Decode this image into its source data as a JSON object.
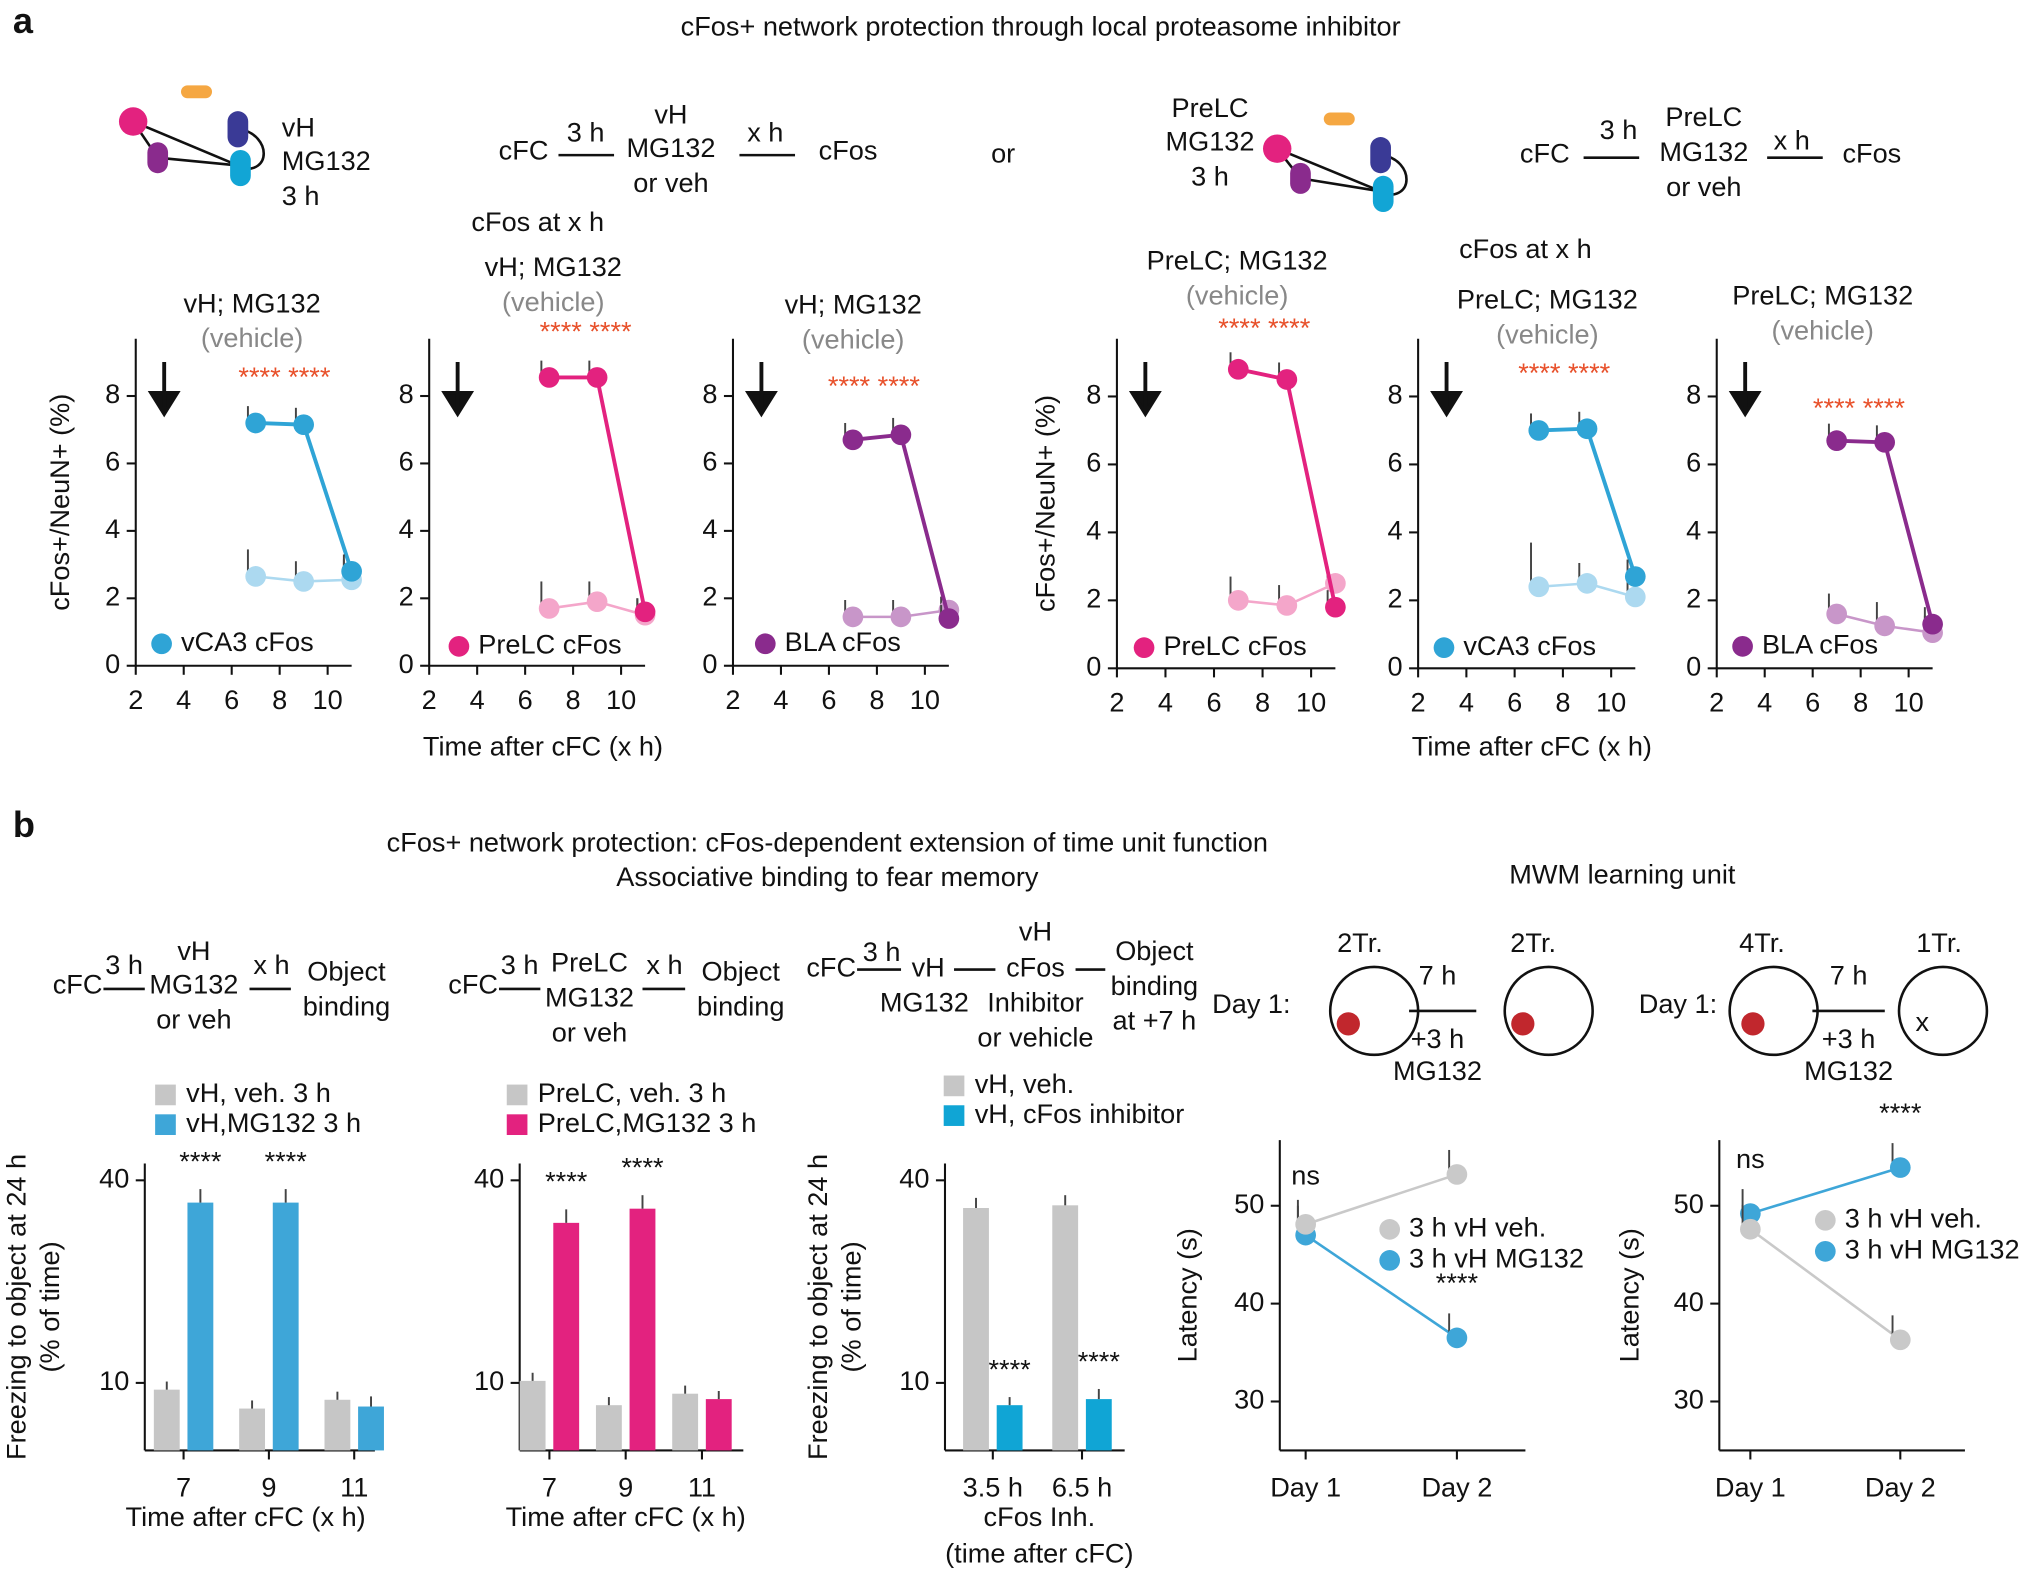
{
  "texts": [
    "a",
    "cFos+ network protection through local proteasome inhibitor",
    "vH",
    "MG132",
    "3 h",
    "cFC",
    "3 h",
    "vH",
    "MG132",
    "or veh",
    "x h",
    "cFos",
    "or",
    "PreLC",
    "MG132",
    "3 h",
    "cFC",
    "3 h",
    "PreLC",
    "MG132",
    "or veh",
    "x h",
    "cFos",
    "cFos at  x h",
    "cFos at  x h",
    "b",
    "cFos+ network protection: cFos-dependent extension of time unit function",
    "Associative binding to fear memory",
    "MWM learning unit",
    "cFC",
    "3 h",
    "vH",
    "MG132",
    "or veh",
    "x h",
    "Object",
    "binding",
    "cFC",
    "3 h",
    "PreLC",
    "MG132",
    "or veh",
    "x h",
    "Object",
    "binding",
    "cFC",
    "3 h",
    "vH",
    "MG132",
    "vH",
    "cFos",
    "Inhibitor",
    "or vehicle",
    "Object",
    "binding",
    "at +7 h",
    "2Tr.",
    "7 h",
    "2Tr.",
    "Day 1:",
    "+3 h",
    "MG132",
    "4Tr.",
    "7 h",
    "1Tr.",
    "Day 1:",
    "+3 h",
    "MG132",
    "x"
  ],
  "chart_data": [
    {
      "type": "line",
      "title": "vH; MG132",
      "subtitle": "(vehicle)",
      "annotation": "**** ****",
      "ylabel": "cFos+/NeuN+ (%)",
      "x": [
        7,
        9,
        11
      ],
      "series": [
        {
          "name": "vCA3 cFos",
          "color": "#2fa4d6",
          "values": [
            7.2,
            7.15,
            2.8
          ],
          "errors": [
            0.5,
            0.5,
            0.5
          ]
        },
        {
          "color": "#acd9f0",
          "values": [
            2.65,
            2.5,
            2.55
          ],
          "errors": [
            0.8,
            0.6,
            0.6
          ]
        }
      ],
      "xlim": [
        2,
        11
      ],
      "xticks": [
        2,
        4,
        6,
        8,
        10
      ],
      "ylim": [
        0,
        9.7
      ],
      "yticks": [
        0,
        2,
        4,
        6,
        8
      ]
    },
    {
      "type": "line",
      "title": "vH; MG132",
      "subtitle": "(vehicle)",
      "annotation": "**** ****",
      "xlabel": "Time after cFC (x h)",
      "x": [
        7,
        9,
        11
      ],
      "series": [
        {
          "name": "PreLC cFos",
          "color": "#e3227f",
          "values": [
            8.55,
            8.55,
            1.6
          ],
          "errors": [
            0.5,
            0.5,
            0.4
          ]
        },
        {
          "color": "#f4a6ca",
          "values": [
            1.7,
            1.9,
            1.5
          ],
          "errors": [
            0.8,
            0.6,
            0.5
          ]
        }
      ],
      "xlim": [
        2,
        11
      ],
      "xticks": [
        2,
        4,
        6,
        8,
        10
      ],
      "ylim": [
        0,
        9.7
      ],
      "yticks": [
        0,
        2,
        4,
        6,
        8
      ]
    },
    {
      "type": "line",
      "title": "vH; MG132",
      "subtitle": "(vehicle)",
      "annotation": "**** ****",
      "x": [
        7,
        9,
        11
      ],
      "series": [
        {
          "name": "BLA cFos",
          "color": "#8a2b8d",
          "values": [
            6.7,
            6.85,
            1.4
          ],
          "errors": [
            0.5,
            0.5,
            0.4
          ]
        },
        {
          "color": "#c896c9",
          "values": [
            1.45,
            1.45,
            1.65
          ],
          "errors": [
            0.5,
            0.5,
            0.4
          ]
        }
      ],
      "xlim": [
        2,
        11
      ],
      "xticks": [
        2,
        4,
        6,
        8,
        10
      ],
      "ylim": [
        0,
        9.7
      ],
      "yticks": [
        0,
        2,
        4,
        6,
        8
      ]
    },
    {
      "type": "line",
      "title": "PreLC; MG132",
      "subtitle": "(vehicle)",
      "annotation": "**** ****",
      "ylabel": "cFos+/NeuN+ (%)",
      "x": [
        7,
        9,
        11
      ],
      "series": [
        {
          "name": "PreLC cFos",
          "color": "#e3227f",
          "values": [
            8.8,
            8.5,
            1.8
          ],
          "errors": [
            0.5,
            0.5,
            0.5
          ]
        },
        {
          "color": "#f4a6ca",
          "values": [
            2.0,
            1.85,
            2.5
          ],
          "errors": [
            0.7,
            0.6,
            0.5
          ]
        }
      ],
      "xlim": [
        2,
        11
      ],
      "xticks": [
        2,
        4,
        6,
        8,
        10
      ],
      "ylim": [
        0,
        9.7
      ],
      "yticks": [
        0,
        2,
        4,
        6,
        8
      ]
    },
    {
      "type": "line",
      "title": "PreLC; MG132",
      "subtitle": "(vehicle)",
      "annotation": "**** ****",
      "xlabel": "Time after cFC (x h)",
      "x": [
        7,
        9,
        11
      ],
      "series": [
        {
          "name": "vCA3 cFos",
          "color": "#2fa4d6",
          "values": [
            7.0,
            7.05,
            2.7
          ],
          "errors": [
            0.5,
            0.5,
            0.5
          ]
        },
        {
          "color": "#acd9f0",
          "values": [
            2.4,
            2.5,
            2.1
          ],
          "errors": [
            1.3,
            0.6,
            0.5
          ]
        }
      ],
      "xlim": [
        2,
        11
      ],
      "xticks": [
        2,
        4,
        6,
        8,
        10
      ],
      "ylim": [
        0,
        9.7
      ],
      "yticks": [
        0,
        2,
        4,
        6,
        8
      ]
    },
    {
      "type": "line",
      "title": "PreLC; MG132",
      "subtitle": "(vehicle)",
      "annotation": "**** ****",
      "x": [
        7,
        9,
        11
      ],
      "series": [
        {
          "name": "BLA cFos",
          "color": "#8a2b8d",
          "values": [
            6.7,
            6.65,
            1.3
          ],
          "errors": [
            0.5,
            0.5,
            0.5
          ]
        },
        {
          "color": "#c896c9",
          "values": [
            1.6,
            1.25,
            1.05
          ],
          "errors": [
            0.6,
            0.7,
            0.5
          ]
        }
      ],
      "xlim": [
        2,
        11
      ],
      "xticks": [
        2,
        4,
        6,
        8,
        10
      ],
      "ylim": [
        0,
        9.7
      ],
      "yticks": [
        0,
        2,
        4,
        6,
        8
      ]
    },
    {
      "type": "bar",
      "categories": [
        "7",
        "9",
        "11"
      ],
      "ylabel": [
        "Freezing to object at 24 h",
        "(% of time)"
      ],
      "xlabel": [
        "Time after cFC (x h)"
      ],
      "series": [
        {
          "name": "vH, veh. 3 h",
          "color": "#c6c6c6",
          "values": [
            9,
            6.2,
            7.5
          ],
          "errors": [
            1.2,
            1.2,
            1.2
          ]
        },
        {
          "name": "vH,MG132 3 h",
          "color": "#3ea6d8",
          "values": [
            36.7,
            36.7,
            6.5
          ],
          "errors": [
            2,
            2,
            1.5
          ]
        }
      ],
      "annotations": [
        "****",
        "****",
        null
      ],
      "ylim": [
        0,
        42.5
      ],
      "yticks": [
        10,
        40
      ]
    },
    {
      "type": "bar",
      "categories": [
        "7",
        "9",
        "11"
      ],
      "xlabel": [
        "Time after cFC (x h)"
      ],
      "series": [
        {
          "name": "PreLC, veh. 3 h",
          "color": "#c6c6c6",
          "values": [
            10.3,
            6.7,
            8.4
          ],
          "errors": [
            1.2,
            1.2,
            1.2
          ]
        },
        {
          "name": "PreLC,MG132 3 h",
          "color": "#e3227f",
          "values": [
            33.7,
            35.8,
            7.6
          ],
          "errors": [
            2,
            2,
            1.2
          ]
        }
      ],
      "annotations": [
        "****",
        "****",
        null
      ],
      "ylim": [
        0,
        42.5
      ],
      "yticks": [
        10,
        40
      ]
    },
    {
      "type": "bar",
      "categories": [
        "3.5 h",
        "6.5 h"
      ],
      "ylabel": [
        "Freezing to object at 24 h",
        "(% of time)"
      ],
      "xlabel": [
        "cFos Inh.",
        "(time after cFC)"
      ],
      "series": [
        {
          "name": "vH, veh.",
          "color": "#c6c6c6",
          "values": [
            35.9,
            36.3
          ],
          "errors": [
            1.5,
            1.5
          ]
        },
        {
          "name": "vH, cFos inhibitor",
          "color": "#10a5d5",
          "values": [
            6.7,
            7.6
          ],
          "errors": [
            1.2,
            1.5
          ]
        }
      ],
      "annotations": [
        "****",
        "****"
      ],
      "ylim": [
        0,
        42.5
      ],
      "yticks": [
        10,
        40
      ]
    },
    {
      "type": "line",
      "categories": [
        "Day 1",
        "Day 2"
      ],
      "ylabel": "Latency (s)",
      "series": [
        {
          "name": "3 h vH veh.",
          "color": "#c9c9c9",
          "values": [
            48.1,
            53.2
          ],
          "errors": [
            2.5,
            2.5
          ]
        },
        {
          "name": "3 h vH MG132",
          "color": "#3ea6d8",
          "values": [
            47.0,
            36.5
          ],
          "errors": [
            3,
            2.5
          ]
        }
      ],
      "annotations": [
        "ns",
        "****"
      ],
      "ylim": [
        25,
        56.7
      ],
      "yticks": [
        30,
        40,
        50
      ]
    },
    {
      "type": "line",
      "categories": [
        "Day 1",
        "Day 2"
      ],
      "ylabel": "Latency (s)",
      "series": [
        {
          "name": "3 h vH veh.",
          "color": "#c9c9c9",
          "values": [
            47.6,
            36.3
          ],
          "errors": [
            2.5,
            2.5
          ]
        },
        {
          "name": "3 h vH MG132",
          "color": "#3ea6d8",
          "values": [
            49.2,
            53.9
          ],
          "errors": [
            2.5,
            2.5
          ]
        }
      ],
      "annotations": [
        "ns",
        "****"
      ],
      "ylim": [
        25,
        56.7
      ],
      "yticks": [
        30,
        40,
        50
      ]
    }
  ]
}
